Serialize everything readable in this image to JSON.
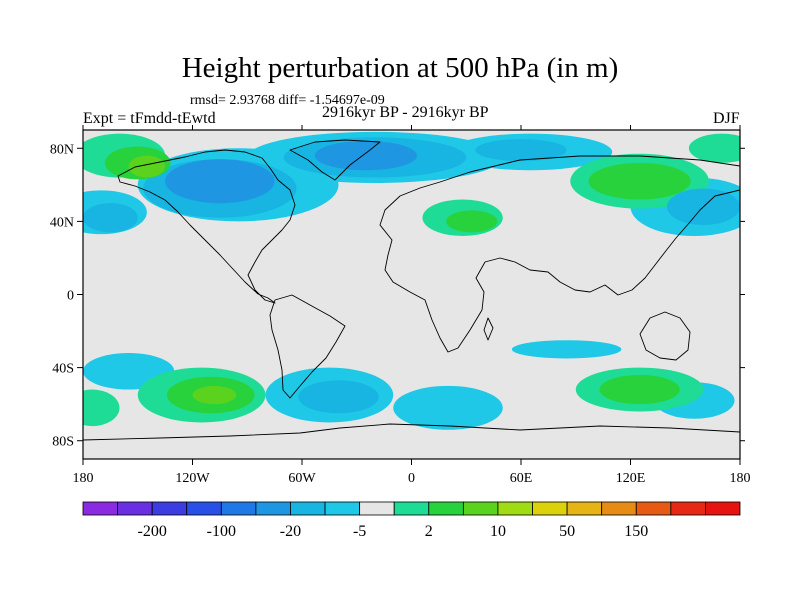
{
  "chart_data": {
    "type": "heatmap",
    "title": "Height perturbation at 500 hPa (in m)",
    "stats": "rmsd= 2.93768 diff= -1.54697e-09",
    "experiment": "Expt = tFmdd-tEwtd",
    "period": "2916kyr BP - 2916kyr BP",
    "season": "DJF",
    "projection": "cylindrical equidistant",
    "xlim": [
      -180,
      180
    ],
    "ylim": [
      -90,
      90
    ],
    "x_ticks": [
      {
        "value": -180,
        "label": "180"
      },
      {
        "value": -120,
        "label": "120W"
      },
      {
        "value": -60,
        "label": "60W"
      },
      {
        "value": 0,
        "label": "0"
      },
      {
        "value": 60,
        "label": "60E"
      },
      {
        "value": 120,
        "label": "120E"
      },
      {
        "value": 180,
        "label": "180"
      }
    ],
    "y_ticks": [
      {
        "value": 80,
        "label": "80N"
      },
      {
        "value": 40,
        "label": "40N"
      },
      {
        "value": 0,
        "label": "0"
      },
      {
        "value": -40,
        "label": "40S"
      },
      {
        "value": -80,
        "label": "80S"
      }
    ],
    "colorbar": {
      "colors": [
        "#8a2be2",
        "#6a2fe0",
        "#3c3ce0",
        "#2850e6",
        "#1e78e6",
        "#1e96e1",
        "#18b4e2",
        "#1ec8e6",
        "#e6e6e6",
        "#1edc96",
        "#28d23c",
        "#5ad21e",
        "#a0dc14",
        "#dcd20a",
        "#e6b414",
        "#e68c14",
        "#e65a14",
        "#e62814",
        "#e61410"
      ],
      "labels": [
        "-200",
        "-100",
        "-20",
        "-5",
        "2",
        "10",
        "50",
        "150"
      ],
      "label_after_index": [
        1,
        3,
        5,
        7,
        9,
        11,
        13,
        15
      ]
    },
    "fields": {
      "levels": [
        -20,
        -10,
        -5,
        -2,
        2,
        5,
        10,
        20
      ],
      "colors": {
        "-20": "#1e78e6",
        "-10": "#1e96e1",
        "-5": "#18b4e2",
        "-2": "#1ec8e6",
        "2": "#1edc96",
        "5": "#28d23c",
        "10": "#5ad21e",
        "20": "#a0dc14"
      },
      "regions": [
        {
          "level": -2,
          "lon": -95,
          "lat": 60,
          "rlon": 55,
          "rlat": 20
        },
        {
          "level": -5,
          "lon": -105,
          "lat": 58,
          "rlon": 42,
          "rlat": 16
        },
        {
          "level": -10,
          "lon": -105,
          "lat": 62,
          "rlon": 30,
          "rlat": 12
        },
        {
          "level": -2,
          "lon": -20,
          "lat": 75,
          "rlon": 70,
          "rlat": 14
        },
        {
          "level": -5,
          "lon": -20,
          "lat": 75,
          "rlon": 50,
          "rlat": 11
        },
        {
          "level": -10,
          "lon": -25,
          "lat": 76,
          "rlon": 28,
          "rlat": 8
        },
        {
          "level": -2,
          "lon": 65,
          "lat": 78,
          "rlon": 45,
          "rlat": 10
        },
        {
          "level": -5,
          "lon": 60,
          "lat": 79,
          "rlon": 25,
          "rlat": 6
        },
        {
          "level": -2,
          "lon": -170,
          "lat": 45,
          "rlon": 25,
          "rlat": 12
        },
        {
          "level": -5,
          "lon": -165,
          "lat": 42,
          "rlon": 15,
          "rlat": 8
        },
        {
          "level": -2,
          "lon": 155,
          "lat": 48,
          "rlon": 35,
          "rlat": 16
        },
        {
          "level": -5,
          "lon": 160,
          "lat": 48,
          "rlon": 20,
          "rlat": 10
        },
        {
          "level": 2,
          "lon": -160,
          "lat": 76,
          "rlon": 25,
          "rlat": 12
        },
        {
          "level": 5,
          "lon": -150,
          "lat": 72,
          "rlon": 18,
          "rlat": 9
        },
        {
          "level": 10,
          "lon": -145,
          "lat": 70,
          "rlon": 10,
          "rlat": 6
        },
        {
          "level": 2,
          "lon": 125,
          "lat": 62,
          "rlon": 38,
          "rlat": 15
        },
        {
          "level": 5,
          "lon": 125,
          "lat": 62,
          "rlon": 28,
          "rlat": 10
        },
        {
          "level": 2,
          "lon": 170,
          "lat": 80,
          "rlon": 18,
          "rlat": 8
        },
        {
          "level": 2,
          "lon": 28,
          "lat": 42,
          "rlon": 22,
          "rlat": 10
        },
        {
          "level": 5,
          "lon": 33,
          "lat": 40,
          "rlon": 14,
          "rlat": 6
        },
        {
          "level": -2,
          "lon": -45,
          "lat": -55,
          "rlon": 35,
          "rlat": 15
        },
        {
          "level": -5,
          "lon": -40,
          "lat": -56,
          "rlon": 22,
          "rlat": 9
        },
        {
          "level": -2,
          "lon": 20,
          "lat": -62,
          "rlon": 30,
          "rlat": 12
        },
        {
          "level": -2,
          "lon": 155,
          "lat": -58,
          "rlon": 22,
          "rlat": 10
        },
        {
          "level": -2,
          "lon": -155,
          "lat": -42,
          "rlon": 25,
          "rlat": 10
        },
        {
          "level": -2,
          "lon": 85,
          "lat": -30,
          "rlon": 30,
          "rlat": 5
        },
        {
          "level": 2,
          "lon": -115,
          "lat": -55,
          "rlon": 35,
          "rlat": 15
        },
        {
          "level": 5,
          "lon": -110,
          "lat": -55,
          "rlon": 24,
          "rlat": 10
        },
        {
          "level": 10,
          "lon": -108,
          "lat": -55,
          "rlon": 12,
          "rlat": 5
        },
        {
          "level": 2,
          "lon": 125,
          "lat": -52,
          "rlon": 35,
          "rlat": 12
        },
        {
          "level": 5,
          "lon": 125,
          "lat": -52,
          "rlon": 22,
          "rlat": 8
        },
        {
          "level": 2,
          "lon": -175,
          "lat": -62,
          "rlon": 15,
          "rlat": 10
        }
      ]
    }
  }
}
